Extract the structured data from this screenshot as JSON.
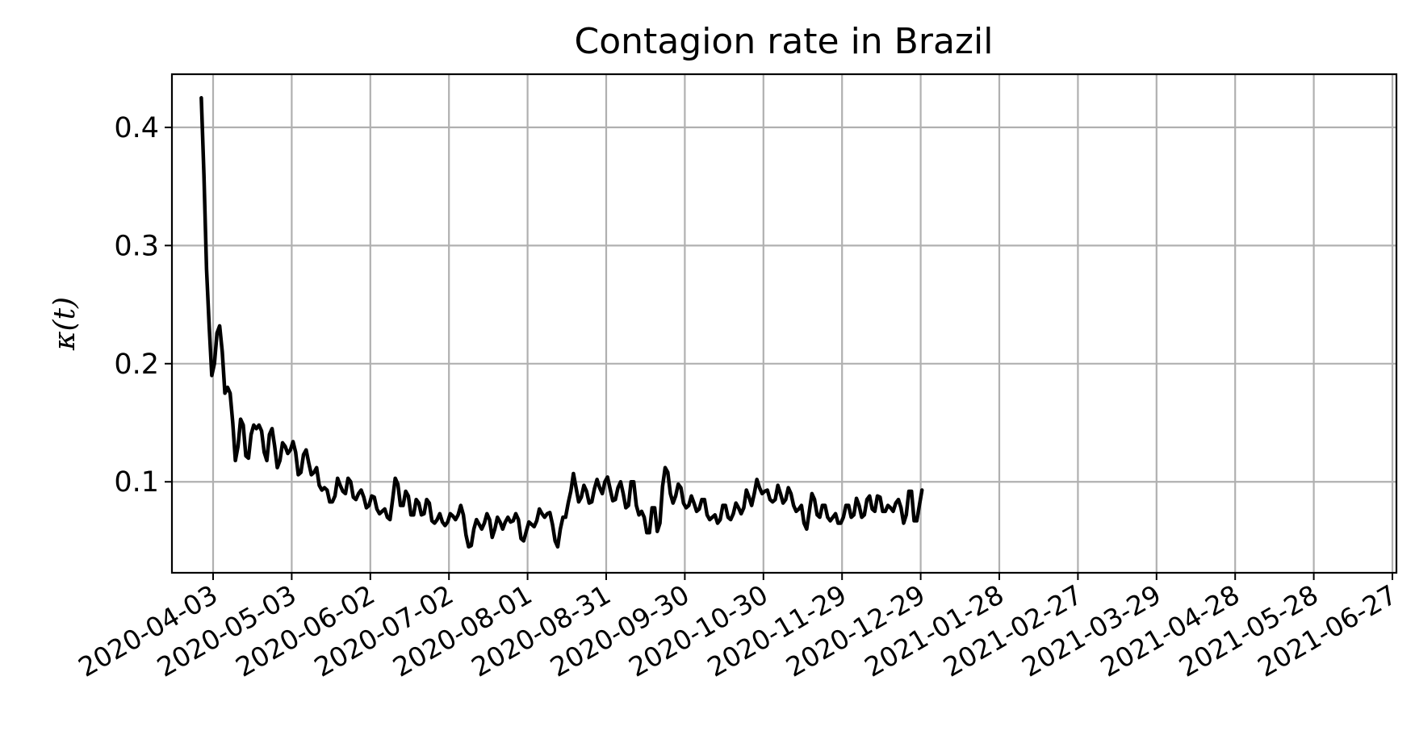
{
  "chart_data": {
    "type": "line",
    "title": "Contagion rate in Brazil",
    "xlabel": "",
    "ylabel": "κ(t)",
    "grid": true,
    "start_date": "2020-03-29",
    "ylim": [
      0.023,
      0.445
    ],
    "xlim_days": [
      0,
      455
    ],
    "yticks": [
      {
        "value": 0.1,
        "label": "0.1"
      },
      {
        "value": 0.2,
        "label": "0.2"
      },
      {
        "value": 0.3,
        "label": "0.3"
      },
      {
        "value": 0.4,
        "label": "0.4"
      }
    ],
    "xticks": [
      {
        "day": 5,
        "label": "2020-04-03"
      },
      {
        "day": 35,
        "label": "2020-05-03"
      },
      {
        "day": 65,
        "label": "2020-06-02"
      },
      {
        "day": 95,
        "label": "2020-07-02"
      },
      {
        "day": 125,
        "label": "2020-08-01"
      },
      {
        "day": 155,
        "label": "2020-08-31"
      },
      {
        "day": 185,
        "label": "2020-09-30"
      },
      {
        "day": 215,
        "label": "2020-10-30"
      },
      {
        "day": 245,
        "label": "2020-11-29"
      },
      {
        "day": 275,
        "label": "2020-12-29"
      },
      {
        "day": 305,
        "label": "2021-01-28"
      },
      {
        "day": 335,
        "label": "2021-02-27"
      },
      {
        "day": 365,
        "label": "2021-03-29"
      },
      {
        "day": 395,
        "label": "2021-04-28"
      },
      {
        "day": 425,
        "label": "2021-05-28"
      },
      {
        "day": 455,
        "label": "2021-06-27"
      }
    ],
    "series": [
      {
        "name": "κ(t)",
        "color": "#000000",
        "points": [
          [
            0.5,
            0.425
          ],
          [
            1.5,
            0.36
          ],
          [
            2.5,
            0.28
          ],
          [
            3.5,
            0.232
          ],
          [
            4.5,
            0.19
          ],
          [
            5.5,
            0.2
          ],
          [
            6.5,
            0.226
          ],
          [
            7.5,
            0.232
          ],
          [
            8.5,
            0.21
          ],
          [
            9.5,
            0.175
          ],
          [
            10.5,
            0.18
          ],
          [
            11.5,
            0.175
          ],
          [
            12.5,
            0.15
          ],
          [
            13.5,
            0.118
          ],
          [
            14.5,
            0.13
          ],
          [
            15.5,
            0.153
          ],
          [
            16.5,
            0.148
          ],
          [
            17.5,
            0.122
          ],
          [
            18.5,
            0.12
          ],
          [
            19.5,
            0.14
          ],
          [
            20.5,
            0.148
          ],
          [
            21.5,
            0.145
          ],
          [
            22.5,
            0.148
          ],
          [
            23.5,
            0.143
          ],
          [
            24.5,
            0.125
          ],
          [
            25.5,
            0.118
          ],
          [
            26.5,
            0.14
          ],
          [
            27.5,
            0.145
          ],
          [
            28.5,
            0.13
          ],
          [
            29.5,
            0.112
          ],
          [
            30.5,
            0.118
          ],
          [
            31.5,
            0.133
          ],
          [
            32.5,
            0.13
          ],
          [
            33.5,
            0.124
          ],
          [
            34.5,
            0.127
          ],
          [
            35.5,
            0.134
          ],
          [
            36.5,
            0.125
          ],
          [
            37.5,
            0.106
          ],
          [
            38.5,
            0.108
          ],
          [
            39.5,
            0.123
          ],
          [
            40.5,
            0.127
          ],
          [
            41.5,
            0.116
          ],
          [
            42.5,
            0.106
          ],
          [
            43.5,
            0.108
          ],
          [
            44.5,
            0.112
          ],
          [
            45.5,
            0.097
          ],
          [
            46.5,
            0.093
          ],
          [
            47.5,
            0.095
          ],
          [
            48.5,
            0.093
          ],
          [
            49.5,
            0.083
          ],
          [
            50.5,
            0.083
          ],
          [
            51.5,
            0.088
          ],
          [
            52.5,
            0.103
          ],
          [
            53.5,
            0.097
          ],
          [
            54.5,
            0.092
          ],
          [
            55.5,
            0.09
          ],
          [
            56.5,
            0.103
          ],
          [
            57.5,
            0.1
          ],
          [
            58.5,
            0.087
          ],
          [
            59.5,
            0.085
          ],
          [
            60.5,
            0.09
          ],
          [
            61.5,
            0.093
          ],
          [
            62.5,
            0.087
          ],
          [
            63.5,
            0.078
          ],
          [
            64.5,
            0.08
          ],
          [
            65.5,
            0.088
          ],
          [
            66.5,
            0.087
          ],
          [
            67.5,
            0.077
          ],
          [
            68.5,
            0.073
          ],
          [
            69.5,
            0.075
          ],
          [
            70.5,
            0.077
          ],
          [
            71.5,
            0.07
          ],
          [
            72.5,
            0.068
          ],
          [
            73.5,
            0.085
          ],
          [
            74.5,
            0.103
          ],
          [
            75.5,
            0.098
          ],
          [
            76.5,
            0.08
          ],
          [
            77.5,
            0.08
          ],
          [
            78.5,
            0.092
          ],
          [
            79.5,
            0.088
          ],
          [
            80.5,
            0.072
          ],
          [
            81.5,
            0.072
          ],
          [
            82.5,
            0.085
          ],
          [
            83.5,
            0.082
          ],
          [
            84.5,
            0.072
          ],
          [
            85.5,
            0.073
          ],
          [
            86.5,
            0.085
          ],
          [
            87.5,
            0.082
          ],
          [
            88.5,
            0.067
          ],
          [
            89.5,
            0.065
          ],
          [
            90.5,
            0.068
          ],
          [
            91.5,
            0.073
          ],
          [
            92.5,
            0.066
          ],
          [
            93.5,
            0.063
          ],
          [
            94.5,
            0.066
          ],
          [
            95.5,
            0.073
          ],
          [
            96.5,
            0.071
          ],
          [
            97.5,
            0.068
          ],
          [
            98.5,
            0.072
          ],
          [
            99.5,
            0.08
          ],
          [
            100.5,
            0.072
          ],
          [
            101.5,
            0.055
          ],
          [
            102.5,
            0.045
          ],
          [
            103.5,
            0.046
          ],
          [
            104.5,
            0.06
          ],
          [
            105.5,
            0.068
          ],
          [
            106.5,
            0.064
          ],
          [
            107.5,
            0.06
          ],
          [
            108.5,
            0.065
          ],
          [
            109.5,
            0.073
          ],
          [
            110.5,
            0.068
          ],
          [
            111.5,
            0.053
          ],
          [
            112.5,
            0.06
          ],
          [
            113.5,
            0.07
          ],
          [
            114.5,
            0.066
          ],
          [
            115.5,
            0.06
          ],
          [
            116.5,
            0.066
          ],
          [
            117.5,
            0.07
          ],
          [
            118.5,
            0.066
          ],
          [
            119.5,
            0.067
          ],
          [
            120.5,
            0.073
          ],
          [
            121.5,
            0.068
          ],
          [
            122.5,
            0.052
          ],
          [
            123.5,
            0.05
          ],
          [
            124.5,
            0.058
          ],
          [
            125.5,
            0.066
          ],
          [
            126.5,
            0.064
          ],
          [
            127.5,
            0.062
          ],
          [
            128.5,
            0.067
          ],
          [
            129.5,
            0.077
          ],
          [
            130.5,
            0.073
          ],
          [
            131.5,
            0.07
          ],
          [
            132.5,
            0.073
          ],
          [
            133.5,
            0.074
          ],
          [
            134.5,
            0.064
          ],
          [
            135.5,
            0.05
          ],
          [
            136.5,
            0.045
          ],
          [
            137.5,
            0.06
          ],
          [
            138.5,
            0.07
          ],
          [
            139.5,
            0.07
          ],
          [
            140.5,
            0.082
          ],
          [
            141.5,
            0.092
          ],
          [
            142.5,
            0.107
          ],
          [
            143.5,
            0.095
          ],
          [
            144.5,
            0.083
          ],
          [
            145.5,
            0.087
          ],
          [
            146.5,
            0.097
          ],
          [
            147.5,
            0.092
          ],
          [
            148.5,
            0.082
          ],
          [
            149.5,
            0.083
          ],
          [
            150.5,
            0.094
          ],
          [
            151.5,
            0.102
          ],
          [
            152.5,
            0.095
          ],
          [
            153.5,
            0.09
          ],
          [
            154.5,
            0.1
          ],
          [
            155.5,
            0.104
          ],
          [
            156.5,
            0.094
          ],
          [
            157.5,
            0.084
          ],
          [
            158.5,
            0.085
          ],
          [
            159.5,
            0.095
          ],
          [
            160.5,
            0.1
          ],
          [
            161.5,
            0.09
          ],
          [
            162.5,
            0.078
          ],
          [
            163.5,
            0.08
          ],
          [
            164.5,
            0.1
          ],
          [
            165.5,
            0.1
          ],
          [
            166.5,
            0.08
          ],
          [
            167.5,
            0.072
          ],
          [
            168.5,
            0.075
          ],
          [
            169.5,
            0.07
          ],
          [
            170.5,
            0.057
          ],
          [
            171.5,
            0.057
          ],
          [
            172.5,
            0.078
          ],
          [
            173.5,
            0.078
          ],
          [
            174.5,
            0.058
          ],
          [
            175.5,
            0.065
          ],
          [
            176.5,
            0.096
          ],
          [
            177.5,
            0.112
          ],
          [
            178.5,
            0.108
          ],
          [
            179.5,
            0.09
          ],
          [
            180.5,
            0.082
          ],
          [
            181.5,
            0.088
          ],
          [
            182.5,
            0.098
          ],
          [
            183.5,
            0.095
          ],
          [
            184.5,
            0.082
          ],
          [
            185.5,
            0.078
          ],
          [
            186.5,
            0.08
          ],
          [
            187.5,
            0.088
          ],
          [
            188.5,
            0.082
          ],
          [
            189.5,
            0.075
          ],
          [
            190.5,
            0.077
          ],
          [
            191.5,
            0.085
          ],
          [
            192.5,
            0.085
          ],
          [
            193.5,
            0.072
          ],
          [
            194.5,
            0.068
          ],
          [
            195.5,
            0.07
          ],
          [
            196.5,
            0.072
          ],
          [
            197.5,
            0.065
          ],
          [
            198.5,
            0.068
          ],
          [
            199.5,
            0.08
          ],
          [
            200.5,
            0.08
          ],
          [
            201.5,
            0.07
          ],
          [
            202.5,
            0.068
          ],
          [
            203.5,
            0.073
          ],
          [
            204.5,
            0.082
          ],
          [
            205.5,
            0.078
          ],
          [
            206.5,
            0.073
          ],
          [
            207.5,
            0.078
          ],
          [
            208.5,
            0.093
          ],
          [
            209.5,
            0.087
          ],
          [
            210.5,
            0.08
          ],
          [
            211.5,
            0.09
          ],
          [
            212.5,
            0.102
          ],
          [
            213.5,
            0.095
          ],
          [
            214.5,
            0.09
          ],
          [
            215.5,
            0.092
          ],
          [
            216.5,
            0.093
          ],
          [
            217.5,
            0.085
          ],
          [
            218.5,
            0.083
          ],
          [
            219.5,
            0.085
          ],
          [
            220.5,
            0.097
          ],
          [
            221.5,
            0.09
          ],
          [
            222.5,
            0.082
          ],
          [
            223.5,
            0.085
          ],
          [
            224.5,
            0.095
          ],
          [
            225.5,
            0.09
          ],
          [
            226.5,
            0.08
          ],
          [
            227.5,
            0.075
          ],
          [
            228.5,
            0.077
          ],
          [
            229.5,
            0.08
          ],
          [
            230.5,
            0.065
          ],
          [
            231.5,
            0.06
          ],
          [
            232.5,
            0.075
          ],
          [
            233.5,
            0.09
          ],
          [
            234.5,
            0.085
          ],
          [
            235.5,
            0.072
          ],
          [
            236.5,
            0.07
          ],
          [
            237.5,
            0.08
          ],
          [
            238.5,
            0.08
          ],
          [
            239.5,
            0.07
          ],
          [
            240.5,
            0.067
          ],
          [
            241.5,
            0.07
          ],
          [
            242.5,
            0.073
          ],
          [
            243.5,
            0.065
          ],
          [
            244.5,
            0.065
          ],
          [
            245.5,
            0.07
          ],
          [
            246.5,
            0.08
          ],
          [
            247.5,
            0.08
          ],
          [
            248.5,
            0.07
          ],
          [
            249.5,
            0.072
          ],
          [
            250.5,
            0.086
          ],
          [
            251.5,
            0.08
          ],
          [
            252.5,
            0.07
          ],
          [
            253.5,
            0.072
          ],
          [
            254.5,
            0.085
          ],
          [
            255.5,
            0.088
          ],
          [
            256.5,
            0.077
          ],
          [
            257.5,
            0.075
          ],
          [
            258.5,
            0.088
          ],
          [
            259.5,
            0.087
          ],
          [
            260.5,
            0.075
          ],
          [
            261.5,
            0.075
          ],
          [
            262.5,
            0.08
          ],
          [
            263.5,
            0.078
          ],
          [
            264.5,
            0.075
          ],
          [
            265.5,
            0.082
          ],
          [
            266.5,
            0.085
          ],
          [
            267.5,
            0.078
          ],
          [
            268.5,
            0.065
          ],
          [
            269.5,
            0.072
          ],
          [
            270.5,
            0.092
          ],
          [
            271.5,
            0.092
          ],
          [
            272.5,
            0.067
          ],
          [
            273.5,
            0.067
          ],
          [
            274.5,
            0.08
          ],
          [
            275.5,
            0.093
          ]
        ]
      }
    ]
  }
}
